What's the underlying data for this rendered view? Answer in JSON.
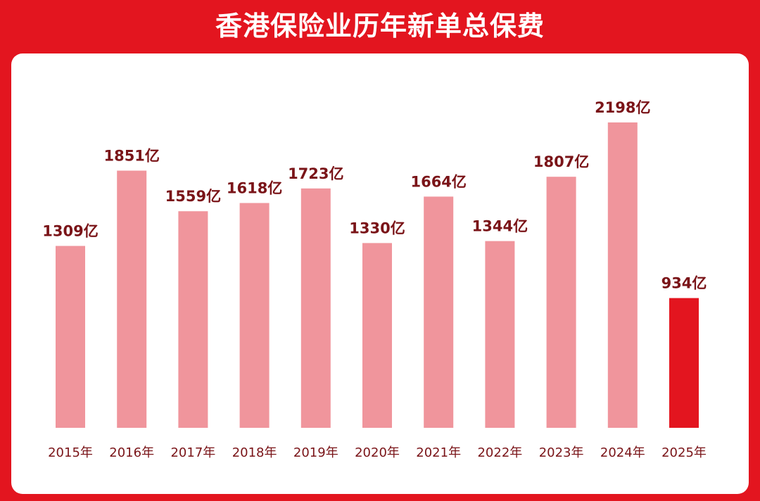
{
  "title": "香港保险业历年新单总保费",
  "colors": {
    "background": "#e3151f",
    "panel": "#ffffff",
    "bar": "#f0959c",
    "highlight_bar": "#e3151f",
    "value_text": "#7a1418",
    "tick_text": "#7a1418"
  },
  "chart_data": {
    "type": "bar",
    "title": "香港保险业历年新单总保费",
    "xlabel": "",
    "ylabel": "",
    "unit": "亿",
    "categories": [
      "2015年",
      "2016年",
      "2017年",
      "2018年",
      "2019年",
      "2020年",
      "2021年",
      "2022年",
      "2023年",
      "2024年",
      "2025年"
    ],
    "values": [
      1309,
      1851,
      1559,
      1618,
      1723,
      1330,
      1664,
      1344,
      1807,
      2198,
      934
    ],
    "value_labels": [
      "1309亿",
      "1851亿",
      "1559亿",
      "1618亿",
      "1723亿",
      "1330亿",
      "1664亿",
      "1344亿",
      "1807亿",
      "2198亿",
      "934亿"
    ],
    "highlight": [
      "2025年"
    ],
    "ylim": [
      0,
      2198
    ],
    "grid": false,
    "legend": "none"
  }
}
